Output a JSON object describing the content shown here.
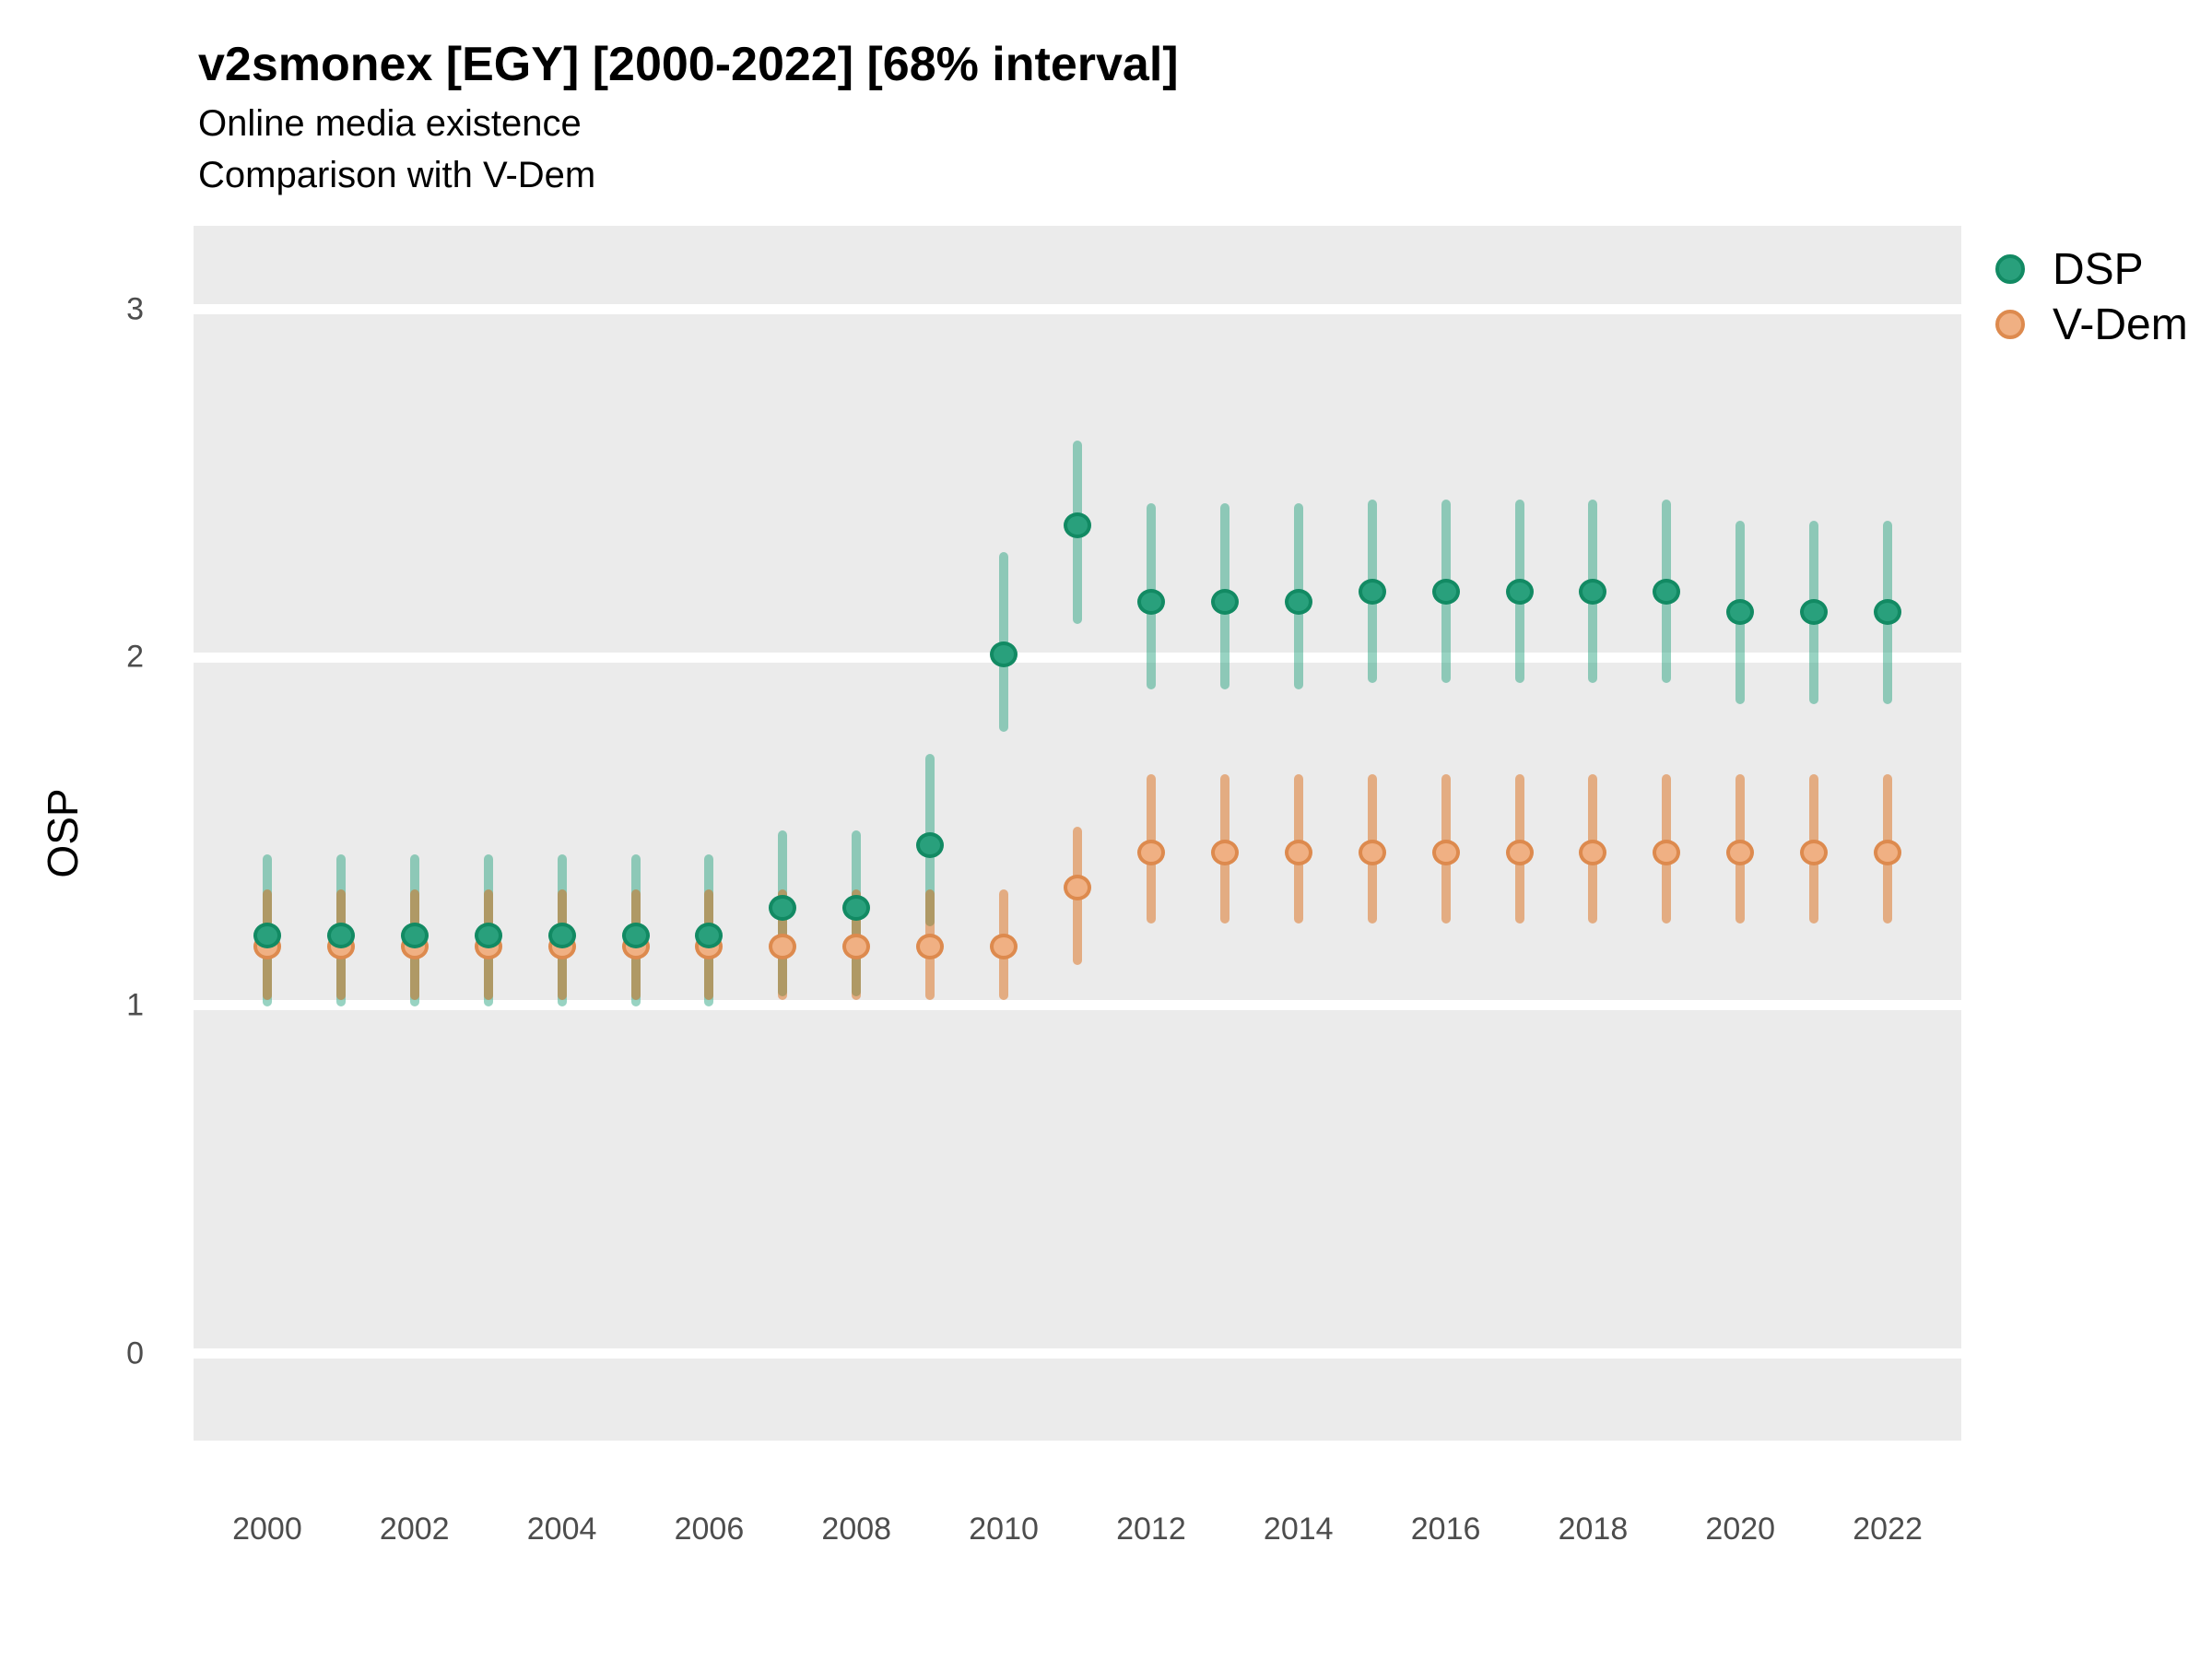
{
  "header": {
    "title": "v2smonex [EGY] [2000-2022] [68% interval]",
    "subtitle1": "Online media existence",
    "subtitle2": "Comparison with V-Dem"
  },
  "chart_data": {
    "type": "scatter",
    "title": "v2smonex [EGY] [2000-2022] [68% interval]",
    "subtitle1": "Online media existence",
    "subtitle2": "Comparison with V-Dem",
    "xlabel": "",
    "ylabel": "OSP",
    "xlim": [
      1999,
      2023
    ],
    "ylim": [
      -0.25,
      3.24
    ],
    "xticks": [
      2000,
      2002,
      2004,
      2006,
      2008,
      2010,
      2012,
      2014,
      2016,
      2018,
      2020,
      2022
    ],
    "yticks": [
      0,
      1,
      2,
      3
    ],
    "grid": "horizontal-major-only",
    "interval_note": "68% interval",
    "x": [
      2000,
      2001,
      2002,
      2003,
      2004,
      2005,
      2006,
      2007,
      2008,
      2009,
      2010,
      2011,
      2012,
      2013,
      2014,
      2015,
      2016,
      2017,
      2018,
      2019,
      2020,
      2021,
      2022
    ],
    "series": [
      {
        "name": "DSP",
        "point": [
          1.2,
          1.2,
          1.2,
          1.2,
          1.2,
          1.2,
          1.2,
          1.28,
          1.28,
          1.46,
          2.01,
          2.38,
          2.16,
          2.16,
          2.16,
          2.19,
          2.19,
          2.19,
          2.19,
          2.19,
          2.13,
          2.13,
          2.13
        ],
        "lo": [
          1.01,
          1.01,
          1.01,
          1.01,
          1.01,
          1.01,
          1.01,
          1.04,
          1.04,
          1.24,
          1.8,
          2.11,
          1.92,
          1.92,
          1.92,
          1.94,
          1.94,
          1.94,
          1.94,
          1.94,
          1.88,
          1.88,
          1.88
        ],
        "hi": [
          1.42,
          1.42,
          1.42,
          1.42,
          1.42,
          1.42,
          1.42,
          1.49,
          1.49,
          1.71,
          2.29,
          2.61,
          2.43,
          2.43,
          2.43,
          2.44,
          2.44,
          2.44,
          2.44,
          2.44,
          2.38,
          2.38,
          2.38
        ]
      },
      {
        "name": "V-Dem",
        "point": [
          1.17,
          1.17,
          1.17,
          1.17,
          1.17,
          1.17,
          1.17,
          1.17,
          1.17,
          1.17,
          1.17,
          1.34,
          1.44,
          1.44,
          1.44,
          1.44,
          1.44,
          1.44,
          1.44,
          1.44,
          1.44,
          1.44,
          1.44
        ],
        "lo": [
          1.03,
          1.03,
          1.03,
          1.03,
          1.03,
          1.03,
          1.03,
          1.03,
          1.03,
          1.03,
          1.03,
          1.13,
          1.25,
          1.25,
          1.25,
          1.25,
          1.25,
          1.25,
          1.25,
          1.25,
          1.25,
          1.25,
          1.25
        ],
        "hi": [
          1.32,
          1.32,
          1.32,
          1.32,
          1.32,
          1.32,
          1.32,
          1.32,
          1.32,
          1.32,
          1.32,
          1.5,
          1.65,
          1.65,
          1.65,
          1.65,
          1.65,
          1.65,
          1.65,
          1.65,
          1.65,
          1.65,
          1.65
        ]
      }
    ],
    "legend": {
      "position": "right-top",
      "items": [
        {
          "label": "DSP"
        },
        {
          "label": "V-Dem"
        }
      ]
    }
  },
  "colors": {
    "panel_bg": "#ebebeb",
    "gridline": "#ffffff",
    "tick_text": "#4d4d4d",
    "dsp_point_fill": "#29a07c",
    "dsp_point_stroke": "#128a63",
    "dsp_bar": "rgba(27,158,119,0.45)",
    "vdem_point_fill": "#f0b083",
    "vdem_point_stroke": "#dd8a4e",
    "vdem_bar": "rgba(217,95,2,0.45)"
  }
}
